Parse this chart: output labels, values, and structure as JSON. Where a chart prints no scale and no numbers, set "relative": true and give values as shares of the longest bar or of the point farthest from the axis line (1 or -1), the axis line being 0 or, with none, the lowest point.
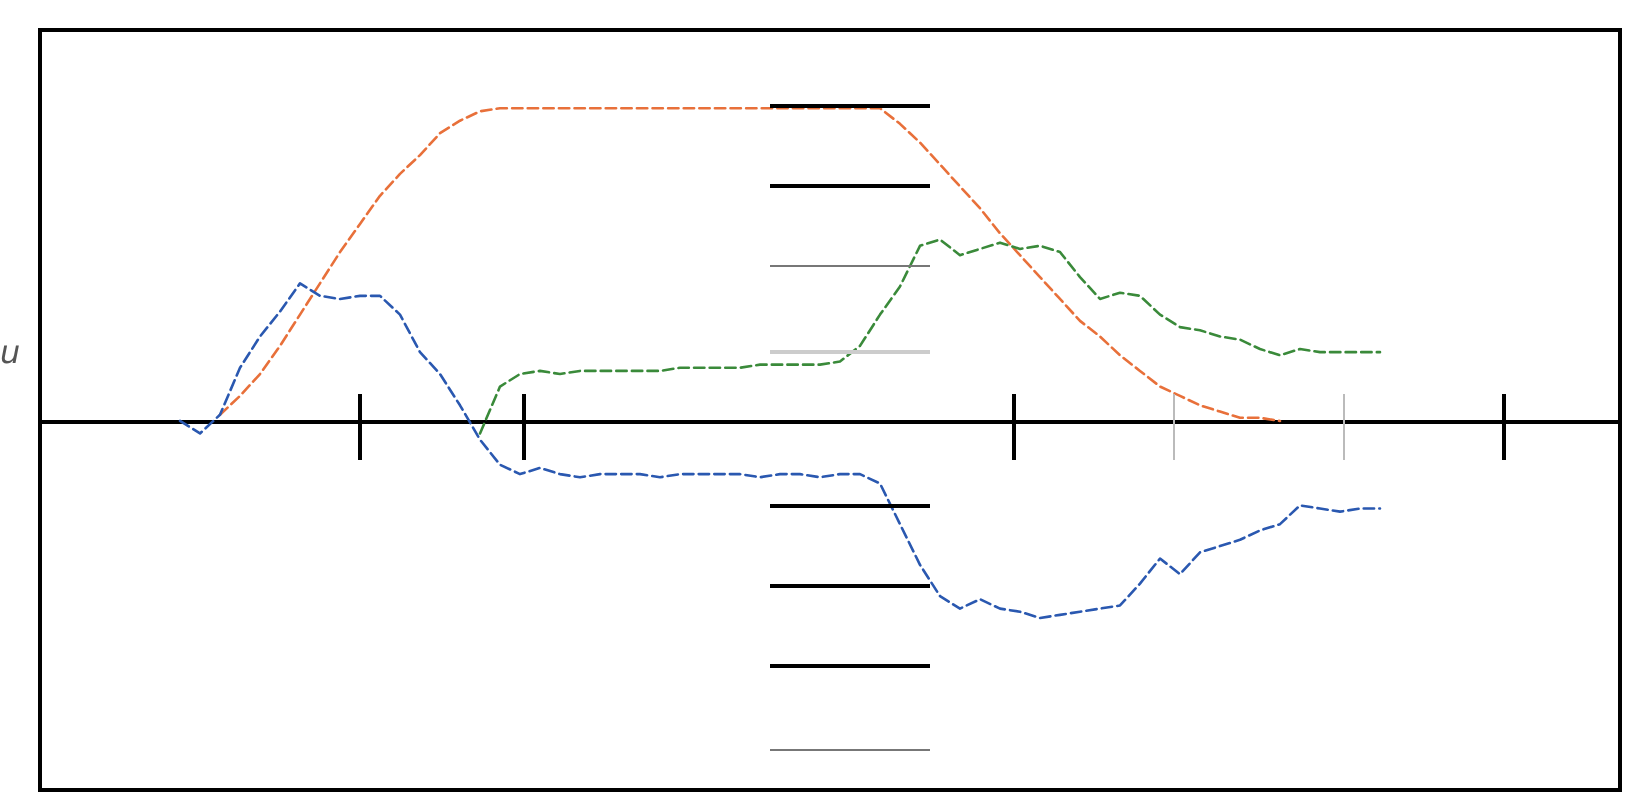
{
  "chart_data": {
    "type": "line",
    "relative": true,
    "ylabel": "u",
    "grid": false,
    "marker": "none",
    "line_style": "dashed",
    "categories": [
      null,
      null,
      null,
      null,
      null,
      null,
      null,
      null,
      null,
      null,
      null,
      null,
      null,
      null,
      null,
      null,
      null,
      null,
      null,
      null,
      null,
      null,
      null,
      null,
      null,
      null,
      null,
      null,
      null,
      null,
      null,
      null,
      null,
      null,
      null,
      null,
      null,
      null,
      null,
      null,
      null,
      null,
      null,
      null,
      null,
      null,
      null,
      null,
      null,
      null,
      null,
      null,
      null,
      null,
      null,
      null,
      null,
      null,
      null,
      null,
      null,
      null,
      null,
      null,
      null,
      null,
      null,
      null,
      null,
      null,
      null,
      null,
      null,
      null,
      null,
      null,
      null,
      null,
      null,
      null
    ],
    "series": [
      {
        "color": "#e8703a",
        "values": [
          null,
          null,
          null,
          null,
          null,
          null,
          null,
          null,
          null,
          0.02,
          0.08,
          0.15,
          0.24,
          0.34,
          0.44,
          0.54,
          0.63,
          0.72,
          0.79,
          0.85,
          0.92,
          0.96,
          0.99,
          1,
          1,
          1,
          1,
          1,
          1,
          1,
          1,
          1,
          1,
          1,
          1,
          1,
          1,
          1,
          1,
          1,
          1,
          1,
          1,
          0.95,
          0.89,
          0.82,
          0.75,
          0.68,
          0.6,
          0.53,
          0.46,
          0.39,
          0.32,
          0.27,
          0.21,
          0.16,
          0.11,
          0.08,
          0.05,
          0.03,
          0.01,
          0.01,
          0,
          null,
          null,
          null,
          null,
          null,
          null,
          null,
          null,
          null,
          null,
          null,
          null,
          null,
          null,
          null,
          null,
          null
        ]
      },
      {
        "color": "#2a58b0",
        "values": [
          null,
          null,
          null,
          null,
          null,
          null,
          null,
          0,
          -0.04,
          0.02,
          0.17,
          0.27,
          0.35,
          0.44,
          0.4,
          0.39,
          0.4,
          0.4,
          0.34,
          0.22,
          0.15,
          0.05,
          -0.06,
          -0.14,
          -0.17,
          -0.15,
          -0.17,
          -0.18,
          -0.17,
          -0.17,
          -0.17,
          -0.18,
          -0.17,
          -0.17,
          -0.17,
          -0.17,
          -0.18,
          -0.17,
          -0.17,
          -0.18,
          -0.17,
          -0.17,
          -0.2,
          -0.33,
          -0.46,
          -0.56,
          -0.6,
          -0.57,
          -0.6,
          -0.61,
          -0.63,
          -0.62,
          -0.61,
          -0.6,
          -0.59,
          -0.52,
          -0.44,
          -0.49,
          -0.42,
          -0.4,
          -0.38,
          -0.35,
          -0.33,
          -0.27,
          -0.28,
          -0.29,
          -0.28,
          -0.28,
          null,
          null,
          null,
          null,
          null,
          null,
          null,
          null,
          null,
          null,
          null,
          null
        ]
      },
      {
        "color": "#3a8a3a",
        "values": [
          null,
          null,
          null,
          null,
          null,
          null,
          null,
          null,
          null,
          null,
          null,
          null,
          null,
          null,
          null,
          null,
          null,
          null,
          null,
          null,
          null,
          null,
          -0.04,
          0.11,
          0.15,
          0.16,
          0.15,
          0.16,
          0.16,
          0.16,
          0.16,
          0.16,
          0.17,
          0.17,
          0.17,
          0.17,
          0.18,
          0.18,
          0.18,
          0.18,
          0.19,
          0.24,
          0.34,
          0.43,
          0.56,
          0.58,
          0.53,
          0.55,
          0.57,
          0.55,
          0.56,
          0.54,
          0.46,
          0.39,
          0.41,
          0.4,
          0.34,
          0.3,
          0.29,
          0.27,
          0.26,
          0.23,
          0.21,
          0.23,
          0.22,
          0.22,
          0.22,
          0.22,
          null,
          null,
          null,
          null,
          null,
          null,
          null,
          null,
          null,
          null,
          null,
          null
        ]
      }
    ]
  }
}
